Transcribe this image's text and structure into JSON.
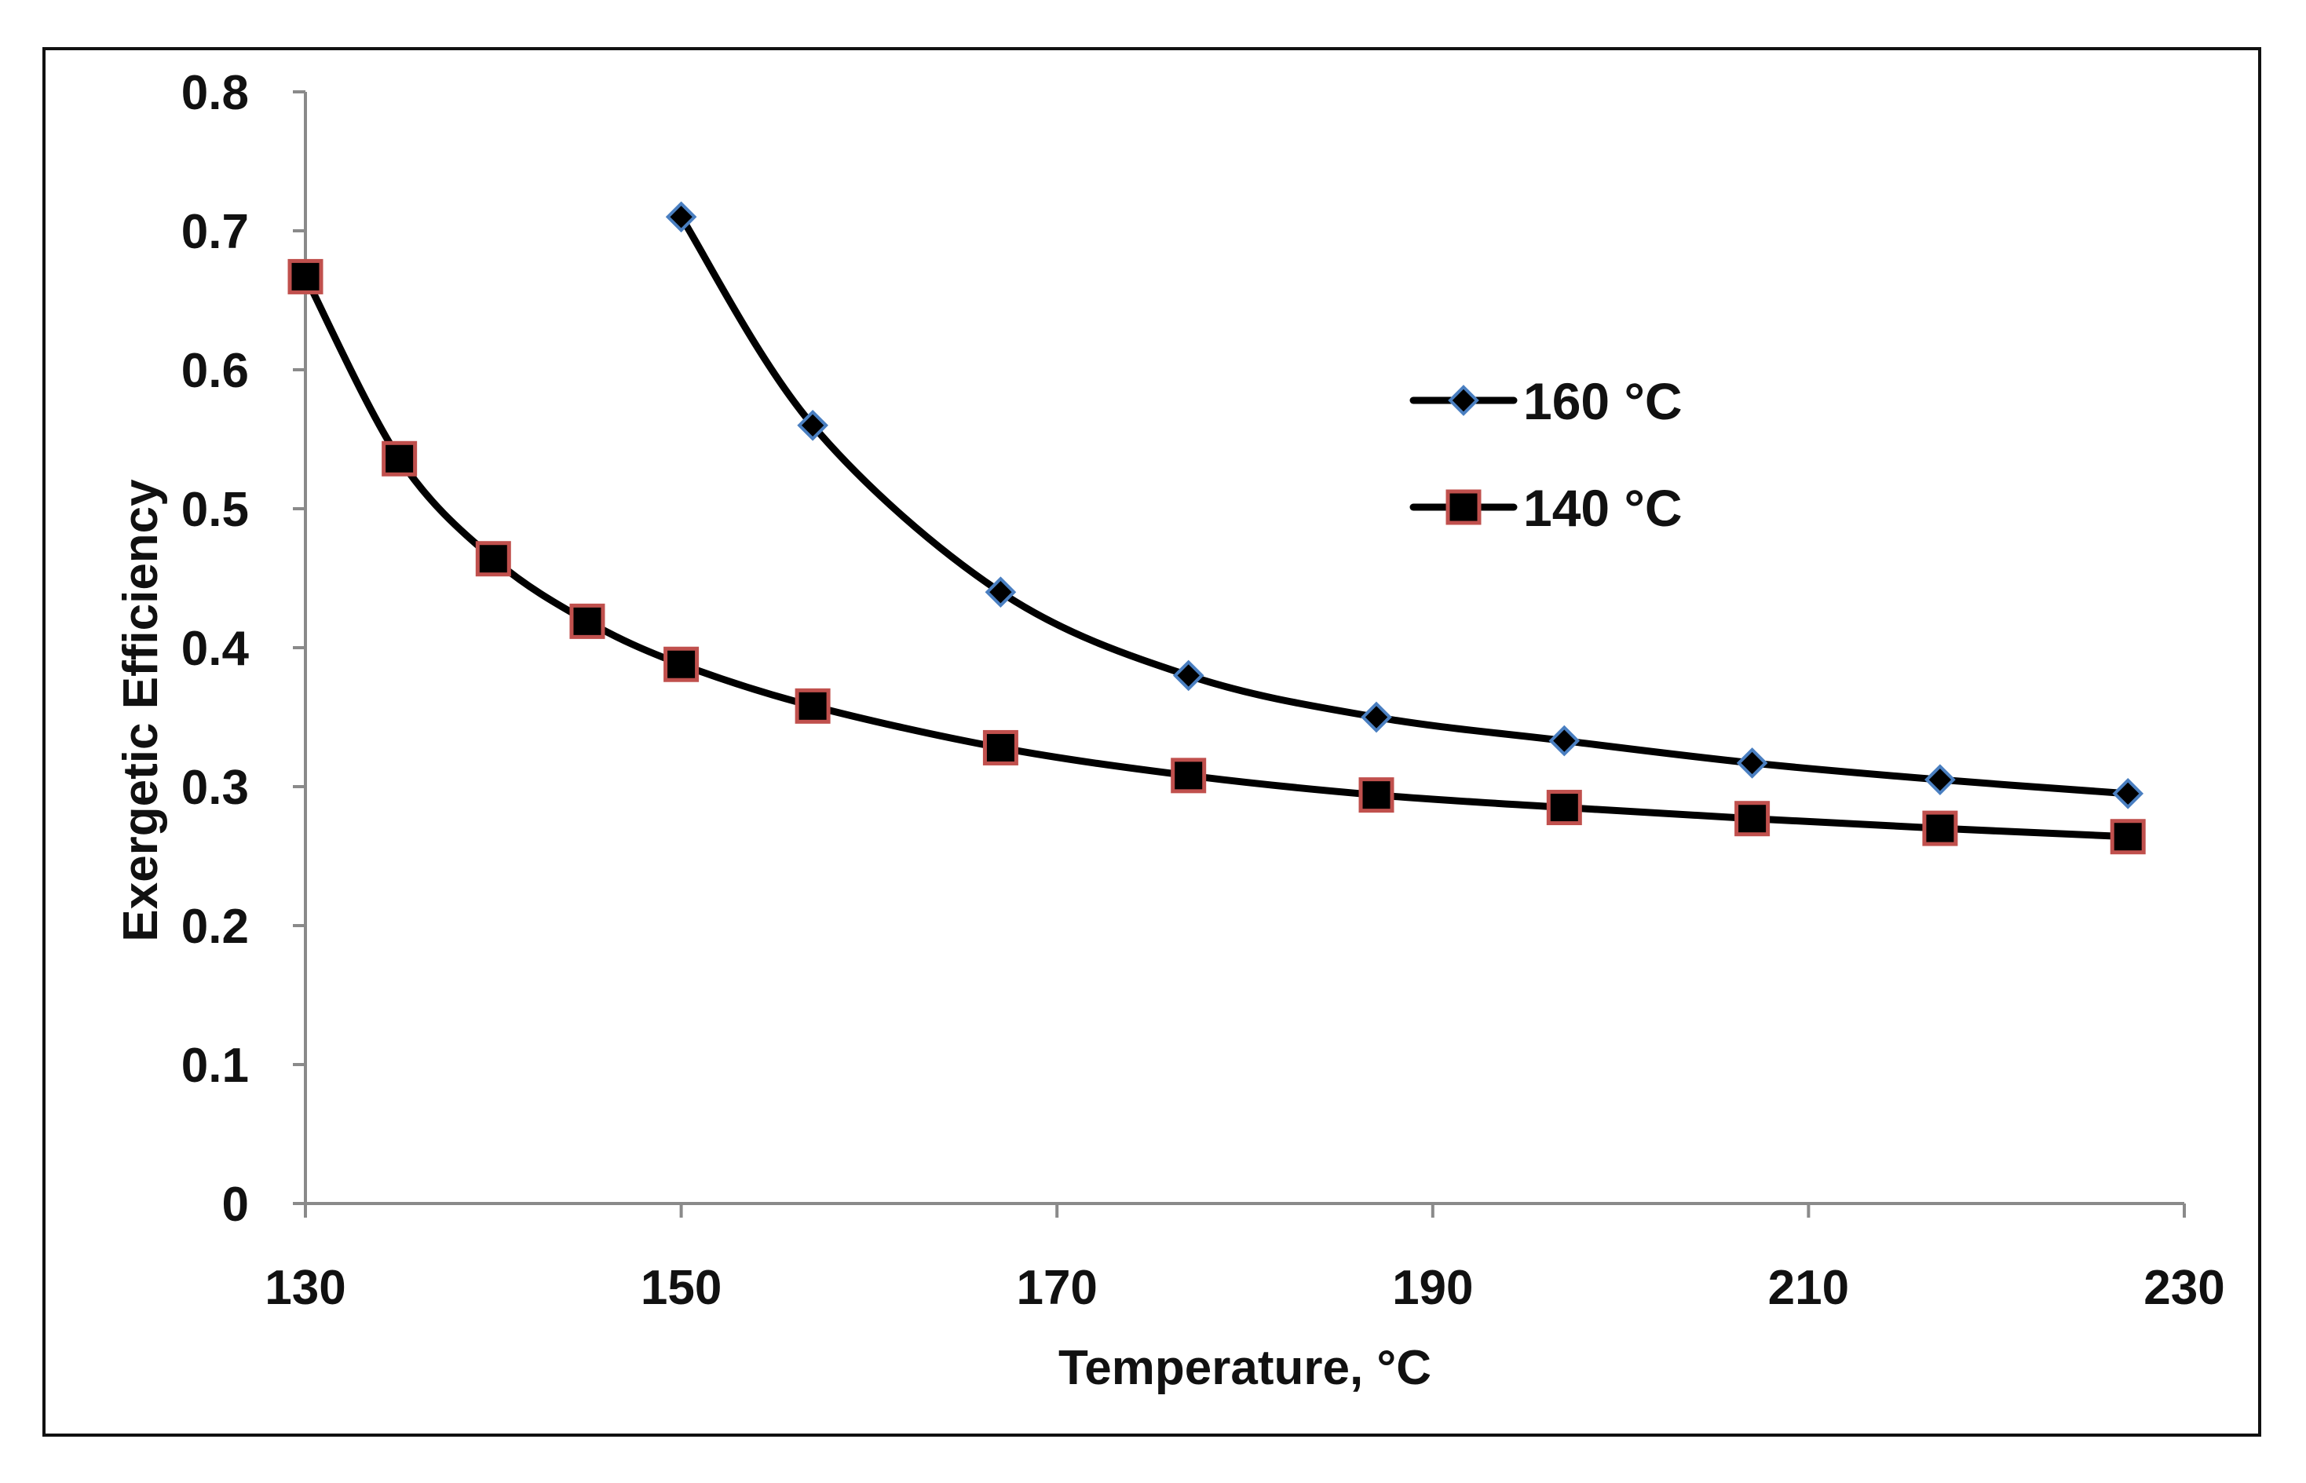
{
  "chart_data": {
    "type": "line",
    "title": "",
    "xlabel": "Temperature, °C",
    "ylabel": "Exergetic Efficiency",
    "xlim": [
      130,
      230
    ],
    "ylim": [
      0,
      0.8
    ],
    "xticks": [
      130,
      150,
      170,
      190,
      210,
      230
    ],
    "yticks": [
      0,
      0.1,
      0.2,
      0.3,
      0.4,
      0.5,
      0.6,
      0.7,
      0.8
    ],
    "xtick_labels": [
      "130",
      "150",
      "170",
      "190",
      "210",
      "230"
    ],
    "ytick_labels": [
      "0",
      "0.1",
      "0.2",
      "0.3",
      "0.4",
      "0.5",
      "0.6",
      "0.7",
      "0.8"
    ],
    "grid": false,
    "legend_position": "right",
    "series": [
      {
        "name": "160 °C",
        "marker": "diamond",
        "line_color": "#000000",
        "marker_fill": "#000000",
        "marker_edge": "#4a7fc1",
        "x": [
          150,
          157,
          167,
          177,
          187,
          197,
          207,
          217,
          227
        ],
        "y": [
          0.71,
          0.56,
          0.44,
          0.38,
          0.35,
          0.333,
          0.317,
          0.305,
          0.295
        ]
      },
      {
        "name": "140 °C",
        "marker": "square",
        "line_color": "#000000",
        "marker_fill": "#000000",
        "marker_edge": "#c0504d",
        "x": [
          130,
          135,
          140,
          145,
          150,
          157,
          167,
          177,
          187,
          197,
          207,
          217,
          227
        ],
        "y": [
          0.667,
          0.536,
          0.464,
          0.419,
          0.388,
          0.358,
          0.328,
          0.308,
          0.294,
          0.285,
          0.277,
          0.27,
          0.264
        ]
      }
    ]
  }
}
